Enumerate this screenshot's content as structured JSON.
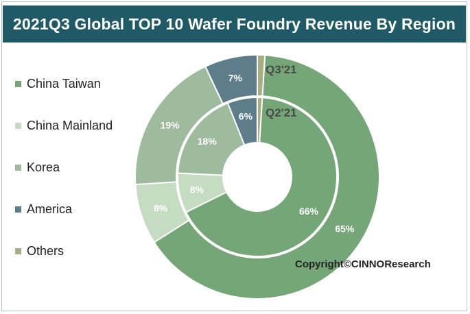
{
  "title": "2021Q3 Global TOP 10 Wafer Foundry Revenue By Region",
  "copyright": "Copyright©CINNOResearch",
  "colors": {
    "header_bg": "#1f5a66",
    "china_taiwan": "#74a678",
    "china_mainland": "#c5dcc2",
    "korea": "#9fbb9d",
    "america": "#5e7d8a",
    "others": "#a8ae84"
  },
  "legend": [
    {
      "label": "China Taiwan",
      "color": "#74a678"
    },
    {
      "label": "China Mainland",
      "color": "#c5dcc2"
    },
    {
      "label": "Korea",
      "color": "#9fbb9d"
    },
    {
      "label": "America",
      "color": "#5e7d8a"
    },
    {
      "label": "Others",
      "color": "#a8ae84"
    }
  ],
  "chart_data": {
    "type": "pie",
    "categories": [
      "China Taiwan",
      "China Mainland",
      "Korea",
      "America",
      "Others"
    ],
    "series": [
      {
        "name": "Q3'21",
        "values": [
          65,
          8,
          19,
          7,
          1
        ],
        "labels": [
          "65%",
          "8%",
          "19%",
          "7%",
          ""
        ]
      },
      {
        "name": "Q2'21",
        "values": [
          66,
          8,
          18,
          6,
          1
        ],
        "labels": [
          "66%",
          "8%",
          "18%",
          "6%",
          ""
        ]
      }
    ],
    "title": "2021Q3 Global TOP 10 Wafer Foundry Revenue By Region"
  }
}
